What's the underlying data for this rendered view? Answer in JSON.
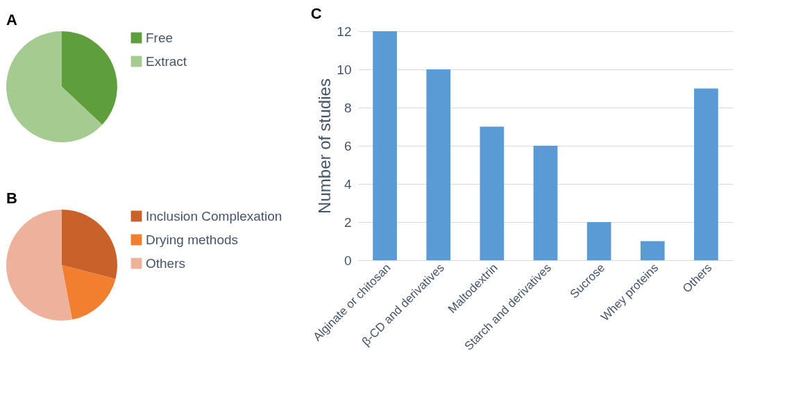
{
  "chart_data": [
    {
      "type": "pie",
      "title": "A",
      "categories": [
        "Free",
        "Extract"
      ],
      "values": [
        37,
        63
      ],
      "colors": [
        "#5e9e3c",
        "#a5cb91"
      ],
      "legend": "right"
    },
    {
      "type": "pie",
      "title": "B",
      "categories": [
        "Inclusion Complexation",
        "Drying methods",
        "Others"
      ],
      "values": [
        29,
        18,
        53
      ],
      "colors": [
        "#c9622a",
        "#f27f2f",
        "#eeb19c"
      ],
      "legend": "right"
    },
    {
      "type": "bar",
      "title": "C",
      "ylabel": "Number of studies",
      "categories": [
        "Alginate or chitosan",
        "β-CD and derivatives",
        "Maltodextrin",
        "Starch and derivatives",
        "Sucrose",
        "Whey proteins",
        "Others"
      ],
      "values": [
        12,
        10,
        7,
        6,
        2,
        1,
        9
      ],
      "color": "#5b9bd5",
      "ylim": [
        0,
        12
      ],
      "yticks": [
        0,
        2,
        4,
        6,
        8,
        10,
        12
      ],
      "grid": "y"
    }
  ]
}
